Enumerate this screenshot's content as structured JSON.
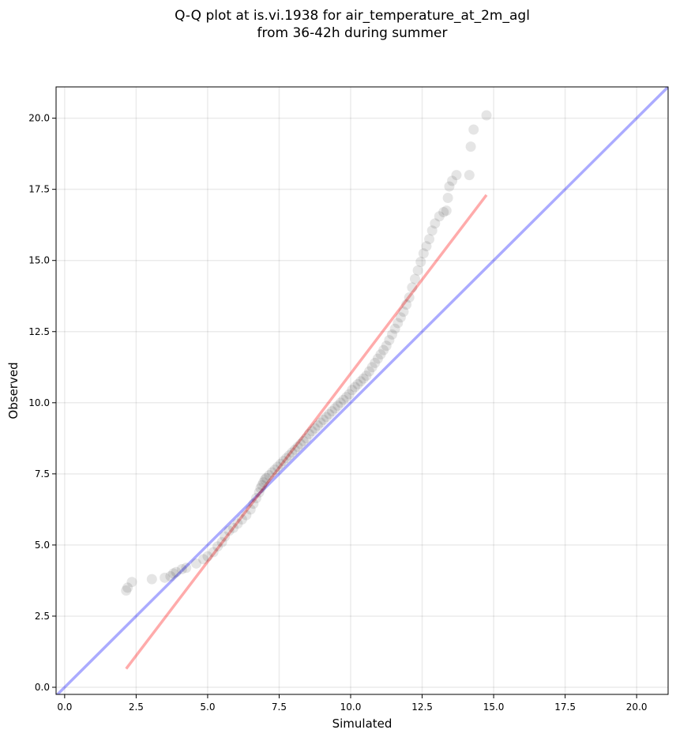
{
  "chart_data": {
    "type": "scatter",
    "title_lines": [
      "Q-Q plot at is.vi.1938 for air_temperature_at_2m_agl",
      "from 36-42h during summer"
    ],
    "xlabel": "Simulated",
    "ylabel": "Observed",
    "xlim": [
      -0.3,
      21.1
    ],
    "ylim": [
      -0.25,
      21.1
    ],
    "xticks": [
      "0.0",
      "2.5",
      "5.0",
      "7.5",
      "10.0",
      "12.5",
      "15.0",
      "17.5",
      "20.0"
    ],
    "yticks": [
      "0.0",
      "2.5",
      "5.0",
      "7.5",
      "10.0",
      "12.5",
      "15.0",
      "17.5",
      "20.0"
    ],
    "grid": true,
    "colors": {
      "points": "#000000",
      "identity_line": "#0000ff",
      "fit_line": "#ff0000"
    },
    "identity_line": {
      "x": [
        -0.3,
        21.1
      ],
      "y": [
        -0.3,
        21.1
      ]
    },
    "fit_line": {
      "x": [
        2.15,
        14.75
      ],
      "y": [
        0.65,
        17.3
      ]
    },
    "points": {
      "x": [
        2.15,
        2.2,
        2.35,
        3.05,
        3.5,
        3.7,
        3.8,
        3.9,
        4.1,
        4.25,
        4.6,
        4.85,
        5.0,
        5.2,
        5.35,
        5.5,
        5.6,
        5.75,
        5.9,
        6.05,
        6.2,
        6.35,
        6.5,
        6.6,
        6.7,
        6.8,
        6.85,
        6.9,
        6.95,
        7.0,
        7.05,
        7.15,
        7.25,
        7.35,
        7.45,
        7.55,
        7.65,
        7.75,
        7.85,
        7.95,
        8.05,
        8.15,
        8.25,
        8.35,
        8.45,
        8.55,
        8.65,
        8.75,
        8.85,
        8.95,
        9.05,
        9.15,
        9.25,
        9.35,
        9.45,
        9.55,
        9.65,
        9.75,
        9.85,
        9.95,
        10.05,
        10.15,
        10.25,
        10.35,
        10.45,
        10.55,
        10.65,
        10.75,
        10.85,
        10.95,
        11.05,
        11.15,
        11.25,
        11.35,
        11.45,
        11.55,
        11.65,
        11.75,
        11.85,
        11.95,
        12.05,
        12.15,
        12.25,
        12.35,
        12.45,
        12.55,
        12.65,
        12.75,
        12.85,
        12.95,
        13.1,
        13.25,
        13.35,
        13.4,
        13.45,
        13.55,
        13.7,
        14.15,
        14.2,
        14.3,
        14.75
      ],
      "y": [
        3.4,
        3.5,
        3.7,
        3.8,
        3.85,
        3.9,
        4.0,
        4.05,
        4.15,
        4.2,
        4.35,
        4.5,
        4.6,
        4.75,
        4.95,
        5.1,
        5.3,
        5.5,
        5.6,
        5.75,
        5.9,
        6.05,
        6.25,
        6.45,
        6.65,
        6.85,
        7.0,
        7.1,
        7.2,
        7.3,
        7.35,
        7.45,
        7.55,
        7.65,
        7.75,
        7.85,
        7.95,
        8.05,
        8.15,
        8.25,
        8.35,
        8.45,
        8.55,
        8.65,
        8.75,
        8.9,
        9.0,
        9.1,
        9.2,
        9.3,
        9.4,
        9.5,
        9.6,
        9.7,
        9.8,
        9.9,
        10.0,
        10.1,
        10.2,
        10.3,
        10.45,
        10.55,
        10.65,
        10.75,
        10.85,
        10.95,
        11.1,
        11.25,
        11.4,
        11.55,
        11.7,
        11.85,
        12.0,
        12.2,
        12.4,
        12.6,
        12.8,
        13.0,
        13.2,
        13.45,
        13.7,
        14.05,
        14.35,
        14.65,
        14.95,
        15.25,
        15.5,
        15.75,
        16.05,
        16.3,
        16.55,
        16.7,
        16.75,
        17.2,
        17.6,
        17.8,
        18.0,
        18.0,
        19.0,
        19.6,
        20.1
      ]
    }
  }
}
